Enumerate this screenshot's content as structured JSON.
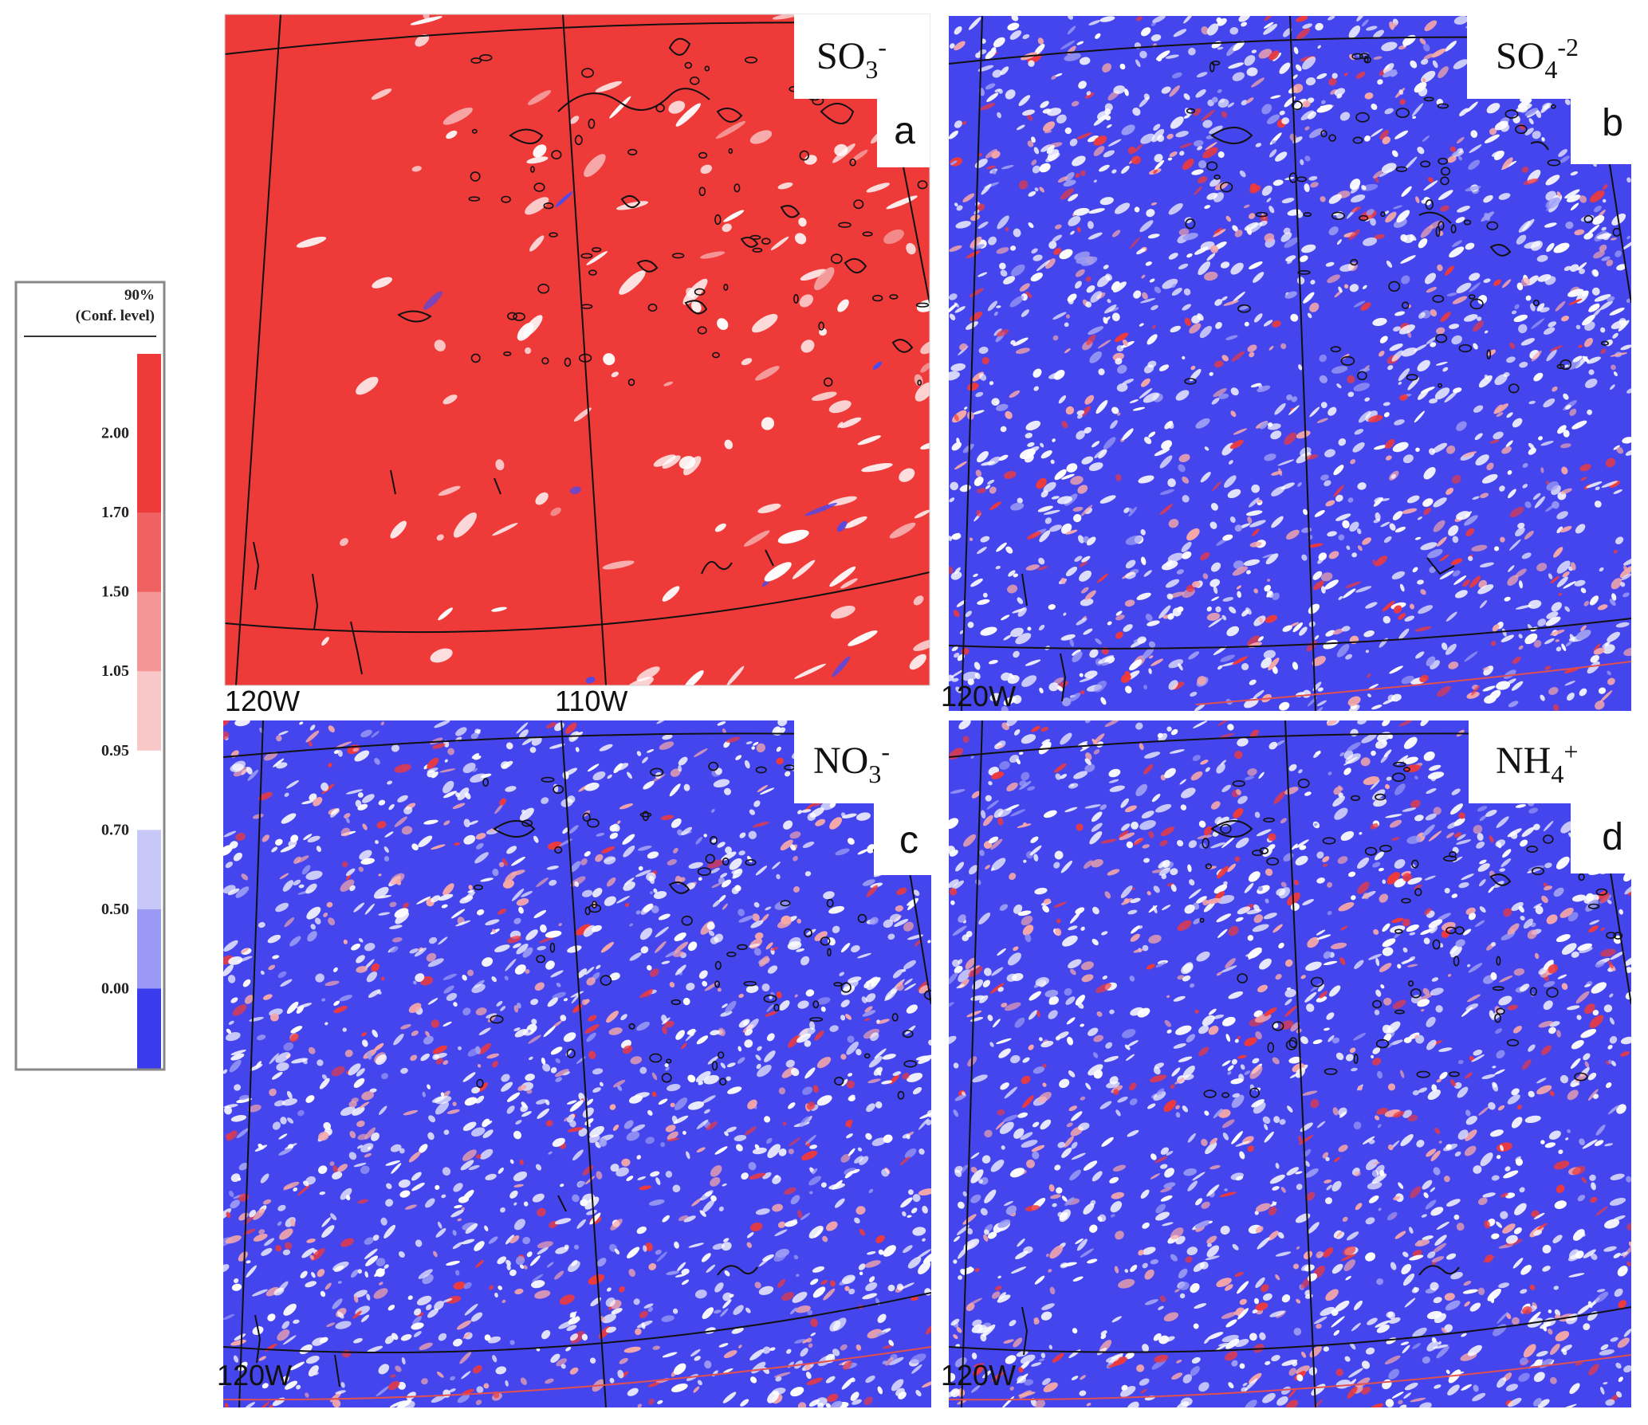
{
  "colorbar": {
    "header_line1": "90%",
    "header_line2": "(Conf. level)",
    "levels": [
      {
        "label": "2.00",
        "color": "#ef3a3a"
      },
      {
        "label": "1.70",
        "color": "#f06262"
      },
      {
        "label": "1.50",
        "color": "#f49696"
      },
      {
        "label": "1.05",
        "color": "#f8c8c8"
      },
      {
        "label": "0.95",
        "color": "#ffffff"
      },
      {
        "label": "0.70",
        "color": "#c8c8f8"
      },
      {
        "label": "0.50",
        "color": "#9a9af4"
      },
      {
        "label": "0.00",
        "color": "#6c6cf0"
      }
    ],
    "top_color": "#ef3a3a",
    "bottom_color": "#3b3bee"
  },
  "panels": [
    {
      "letter": "a",
      "species_base": "SO",
      "species_sub": "3",
      "species_sup": "-",
      "background_color": "#ef3a3a",
      "speckle_color": "#ffffff",
      "accent_color": "#4a4aee",
      "lon_labels": [
        "120W",
        "110W"
      ]
    },
    {
      "letter": "b",
      "species_base": "SO",
      "species_sub": "4",
      "species_sup": "-2",
      "background_color": "#4545ee",
      "speckle_color": "#ffffff",
      "accent_color": "#ef3a3a",
      "lon_labels": [
        "120W"
      ]
    },
    {
      "letter": "c",
      "species_base": "NO",
      "species_sub": "3",
      "species_sup": "-",
      "background_color": "#4545ee",
      "speckle_color": "#ffffff",
      "accent_color": "#ef3a3a",
      "lon_labels": [
        "120W"
      ]
    },
    {
      "letter": "d",
      "species_base": "NH",
      "species_sub": "4",
      "species_sup": "+",
      "background_color": "#4545ee",
      "speckle_color": "#ffffff",
      "accent_color": "#ef3a3a",
      "lon_labels": [
        "120W"
      ]
    }
  ]
}
